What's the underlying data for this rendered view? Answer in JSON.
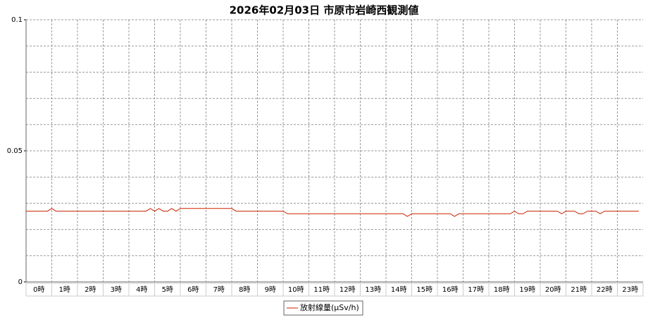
{
  "chart_data": {
    "type": "line",
    "title": "2026年02月03日 市原市岩崎西観測値",
    "categories": [
      "0時",
      "1時",
      "2時",
      "3時",
      "4時",
      "5時",
      "6時",
      "7時",
      "8時",
      "9時",
      "10時",
      "11時",
      "12時",
      "13時",
      "14時",
      "15時",
      "16時",
      "17時",
      "18時",
      "19時",
      "20時",
      "21時",
      "22時",
      "23時"
    ],
    "xlim": [
      0,
      1440
    ],
    "x": [
      0,
      10,
      20,
      30,
      40,
      50,
      60,
      70,
      80,
      90,
      100,
      110,
      120,
      130,
      140,
      150,
      160,
      170,
      180,
      190,
      200,
      210,
      220,
      230,
      240,
      250,
      260,
      270,
      280,
      290,
      300,
      310,
      320,
      330,
      340,
      350,
      360,
      370,
      380,
      390,
      400,
      410,
      420,
      430,
      440,
      450,
      460,
      470,
      480,
      490,
      500,
      510,
      520,
      530,
      540,
      550,
      560,
      570,
      580,
      590,
      600,
      610,
      620,
      630,
      640,
      650,
      660,
      670,
      680,
      690,
      700,
      710,
      720,
      730,
      740,
      750,
      760,
      770,
      780,
      790,
      800,
      810,
      820,
      830,
      840,
      850,
      860,
      870,
      880,
      890,
      900,
      910,
      920,
      930,
      940,
      950,
      960,
      970,
      980,
      990,
      1000,
      1010,
      1020,
      1030,
      1040,
      1050,
      1060,
      1070,
      1080,
      1090,
      1100,
      1110,
      1120,
      1130,
      1140,
      1150,
      1160,
      1170,
      1180,
      1190,
      1200,
      1210,
      1220,
      1230,
      1240,
      1250,
      1260,
      1270,
      1280,
      1290,
      1300,
      1310,
      1320,
      1330,
      1340,
      1350,
      1360,
      1370,
      1380,
      1390,
      1400,
      1410,
      1420,
      1430
    ],
    "series": [
      {
        "name": "放射線量(μSv/h)",
        "color": "#cc2200",
        "values": [
          0.027,
          0.027,
          0.027,
          0.027,
          0.027,
          0.027,
          0.028,
          0.027,
          0.027,
          0.027,
          0.027,
          0.027,
          0.027,
          0.027,
          0.027,
          0.027,
          0.027,
          0.027,
          0.027,
          0.027,
          0.027,
          0.027,
          0.027,
          0.027,
          0.027,
          0.027,
          0.027,
          0.027,
          0.027,
          0.028,
          0.027,
          0.028,
          0.027,
          0.027,
          0.028,
          0.027,
          0.028,
          0.028,
          0.028,
          0.028,
          0.028,
          0.028,
          0.028,
          0.028,
          0.028,
          0.028,
          0.028,
          0.028,
          0.028,
          0.027,
          0.027,
          0.027,
          0.027,
          0.027,
          0.027,
          0.027,
          0.027,
          0.027,
          0.027,
          0.027,
          0.027,
          0.026,
          0.026,
          0.026,
          0.026,
          0.026,
          0.026,
          0.026,
          0.026,
          0.026,
          0.026,
          0.026,
          0.026,
          0.026,
          0.026,
          0.026,
          0.026,
          0.026,
          0.026,
          0.026,
          0.026,
          0.026,
          0.026,
          0.026,
          0.026,
          0.026,
          0.026,
          0.026,
          0.026,
          0.025,
          0.026,
          0.026,
          0.026,
          0.026,
          0.026,
          0.026,
          0.026,
          0.026,
          0.026,
          0.026,
          0.025,
          0.026,
          0.026,
          0.026,
          0.026,
          0.026,
          0.026,
          0.026,
          0.026,
          0.026,
          0.026,
          0.026,
          0.026,
          0.026,
          0.027,
          0.026,
          0.026,
          0.027,
          0.027,
          0.027,
          0.027,
          0.027,
          0.027,
          0.027,
          0.027,
          0.026,
          0.027,
          0.027,
          0.027,
          0.026,
          0.026,
          0.027,
          0.027,
          0.027,
          0.026,
          0.027,
          0.027,
          0.027,
          0.027,
          0.027,
          0.027,
          0.027,
          0.027,
          0.027
        ]
      }
    ],
    "ylim": [
      0,
      0.1
    ],
    "yticks": [
      0,
      0.05,
      0.1
    ],
    "minor_yticks": [
      0.01,
      0.02,
      0.03,
      0.04,
      0.06,
      0.07,
      0.08,
      0.09
    ],
    "grid": true,
    "legend": "bottom"
  }
}
